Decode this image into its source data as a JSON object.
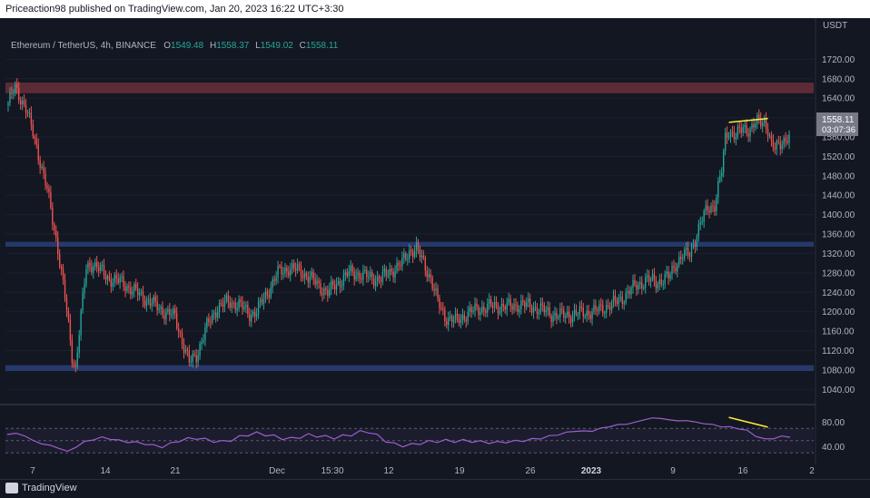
{
  "header": {
    "published": "Priceaction98 published on TradingView.com, Jan 20, 2023 16:22 UTC+3:30"
  },
  "symbol_line": {
    "symbol": "Ethereum / TetherUS, 4h, BINANCE",
    "o_label": "O",
    "o_value": "1549.48",
    "h_label": "H",
    "h_value": "1558.37",
    "l_label": "L",
    "l_value": "1549.02",
    "c_label": "C",
    "c_value": "1558.11"
  },
  "price_axis": {
    "currency": "USDT",
    "ticks": [
      "1720.00",
      "1680.00",
      "1640.00",
      "1600.00",
      "1560.00",
      "1520.00",
      "1480.00",
      "1440.00",
      "1400.00",
      "1360.00",
      "1320.00",
      "1280.00",
      "1240.00",
      "1200.00",
      "1160.00",
      "1120.00",
      "1080.00",
      "1040.00"
    ],
    "last_price": "1558.11",
    "countdown": "03:07:36"
  },
  "rsi_axis": {
    "ticks": [
      "80.00",
      "40.00"
    ]
  },
  "time_axis": {
    "ticks": [
      "7",
      "14",
      "21",
      "Dec",
      "15:30",
      "12",
      "19",
      "26",
      "2023",
      "9",
      "16",
      "2"
    ]
  },
  "footer": {
    "brand": "TradingView"
  },
  "colors": {
    "background": "#131722",
    "up": "#26a69a",
    "down": "#ef5350",
    "supply_zone": "#6b2f3a",
    "demand_zone": "#2a3f78",
    "divergence_line": "#ffeb3b",
    "rsi_line": "#9c5fcf"
  },
  "chart_data": {
    "type": "candlestick",
    "symbol": "ETH/USDT",
    "timeframe": "4h",
    "ylim": [
      1020,
      1730
    ],
    "x_categories": [
      "7",
      "14",
      "21",
      "Dec",
      "15:30",
      "12",
      "19",
      "26",
      "2023",
      "9",
      "16",
      "2"
    ],
    "price_path": [
      [
        0,
        1630
      ],
      [
        4,
        1660
      ],
      [
        10,
        1620
      ],
      [
        16,
        1540
      ],
      [
        22,
        1450
      ],
      [
        28,
        1330
      ],
      [
        32,
        1230
      ],
      [
        36,
        1110
      ],
      [
        38,
        1085
      ],
      [
        40,
        1160
      ],
      [
        44,
        1290
      ],
      [
        48,
        1300
      ],
      [
        56,
        1270
      ],
      [
        64,
        1260
      ],
      [
        72,
        1240
      ],
      [
        80,
        1220
      ],
      [
        88,
        1200
      ],
      [
        94,
        1190
      ],
      [
        98,
        1140
      ],
      [
        102,
        1095
      ],
      [
        106,
        1110
      ],
      [
        112,
        1170
      ],
      [
        118,
        1210
      ],
      [
        124,
        1220
      ],
      [
        130,
        1215
      ],
      [
        136,
        1195
      ],
      [
        140,
        1200
      ],
      [
        146,
        1240
      ],
      [
        152,
        1280
      ],
      [
        158,
        1290
      ],
      [
        164,
        1285
      ],
      [
        170,
        1270
      ],
      [
        176,
        1250
      ],
      [
        180,
        1240
      ],
      [
        186,
        1260
      ],
      [
        192,
        1280
      ],
      [
        198,
        1278
      ],
      [
        204,
        1270
      ],
      [
        210,
        1268
      ],
      [
        216,
        1285
      ],
      [
        222,
        1300
      ],
      [
        226,
        1325
      ],
      [
        230,
        1330
      ],
      [
        234,
        1300
      ],
      [
        238,
        1270
      ],
      [
        242,
        1220
      ],
      [
        246,
        1190
      ],
      [
        252,
        1180
      ],
      [
        258,
        1195
      ],
      [
        264,
        1205
      ],
      [
        270,
        1210
      ],
      [
        276,
        1212
      ],
      [
        282,
        1210
      ],
      [
        288,
        1215
      ],
      [
        294,
        1212
      ],
      [
        300,
        1205
      ],
      [
        306,
        1195
      ],
      [
        312,
        1192
      ],
      [
        318,
        1195
      ],
      [
        324,
        1198
      ],
      [
        330,
        1200
      ],
      [
        336,
        1210
      ],
      [
        342,
        1218
      ],
      [
        348,
        1235
      ],
      [
        354,
        1255
      ],
      [
        360,
        1265
      ],
      [
        366,
        1262
      ],
      [
        372,
        1270
      ],
      [
        376,
        1300
      ],
      [
        380,
        1315
      ],
      [
        384,
        1320
      ],
      [
        386,
        1340
      ],
      [
        390,
        1380
      ],
      [
        394,
        1415
      ],
      [
        398,
        1420
      ],
      [
        402,
        1490
      ],
      [
        404,
        1560
      ],
      [
        406,
        1575
      ],
      [
        410,
        1560
      ],
      [
        414,
        1580
      ],
      [
        418,
        1575
      ],
      [
        422,
        1590
      ],
      [
        426,
        1595
      ],
      [
        428,
        1575
      ],
      [
        430,
        1540
      ],
      [
        432,
        1535
      ],
      [
        434,
        1545
      ],
      [
        436,
        1553
      ],
      [
        440,
        1558
      ]
    ],
    "zones": [
      {
        "name": "supply",
        "from": 1650,
        "to": 1672
      },
      {
        "name": "mid",
        "from": 1334,
        "to": 1344
      },
      {
        "name": "demand",
        "from": 1078,
        "to": 1090
      }
    ],
    "divergence": {
      "price_line": [
        [
          406,
          1590
        ],
        [
          428,
          1598
        ]
      ],
      "rsi_line": [
        [
          406,
          88
        ],
        [
          428,
          72
        ]
      ]
    },
    "rsi": {
      "ylim": [
        20,
        100
      ],
      "levels": [
        70,
        30,
        50
      ],
      "values": [
        60,
        62,
        58,
        50,
        45,
        42,
        38,
        32,
        40,
        48,
        52,
        55,
        53,
        50,
        48,
        47,
        45,
        42,
        40,
        45,
        50,
        53,
        54,
        52,
        49,
        48,
        51,
        56,
        60,
        62,
        60,
        57,
        54,
        53,
        56,
        59,
        58,
        56,
        55,
        57,
        60,
        64,
        65,
        58,
        50,
        44,
        42,
        43,
        46,
        48,
        49,
        50,
        49,
        50,
        49,
        48,
        47,
        47,
        48,
        49,
        50,
        52,
        54,
        57,
        60,
        63,
        66,
        65,
        66,
        70,
        73,
        76,
        77,
        80,
        84,
        87,
        86,
        84,
        82,
        83,
        80,
        78,
        76,
        73,
        72,
        70,
        66,
        58,
        52,
        54,
        56,
        57
      ]
    }
  }
}
